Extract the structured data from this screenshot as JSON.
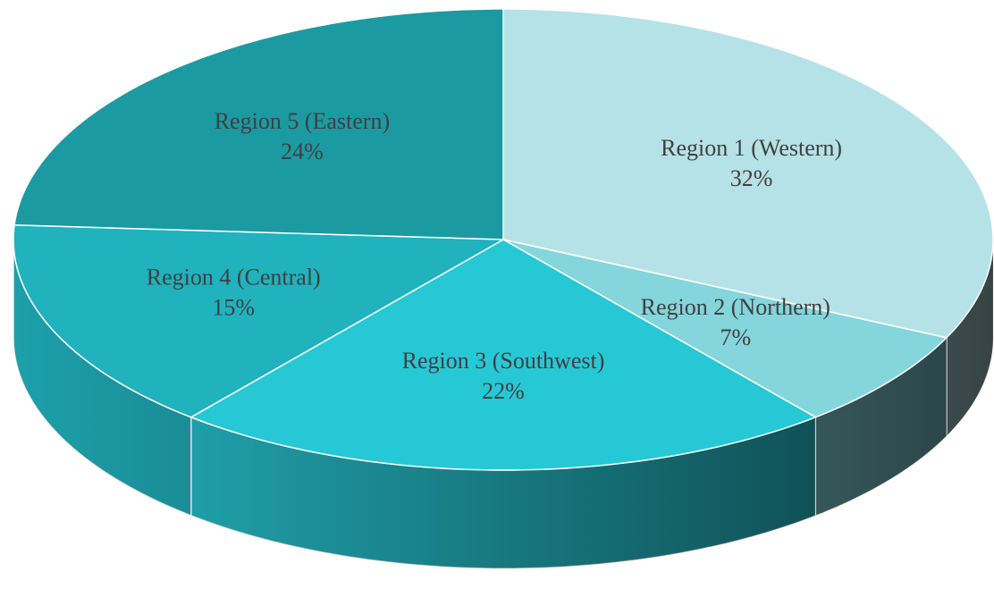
{
  "chart_data": {
    "type": "pie",
    "categories": [
      "Region 1 (Western)",
      "Region 2 (Northern)",
      "Region 3 (Southwest)",
      "Region 4 (Central)",
      "Region 5 (Eastern)"
    ],
    "values": [
      32,
      7,
      22,
      15,
      24
    ],
    "value_labels": [
      "32%",
      "7%",
      "22%",
      "15%",
      "24%"
    ],
    "colors": [
      "#b5e2e7",
      "#84d5dc",
      "#27c8d5",
      "#20b2bd",
      "#1c9aa1"
    ]
  }
}
